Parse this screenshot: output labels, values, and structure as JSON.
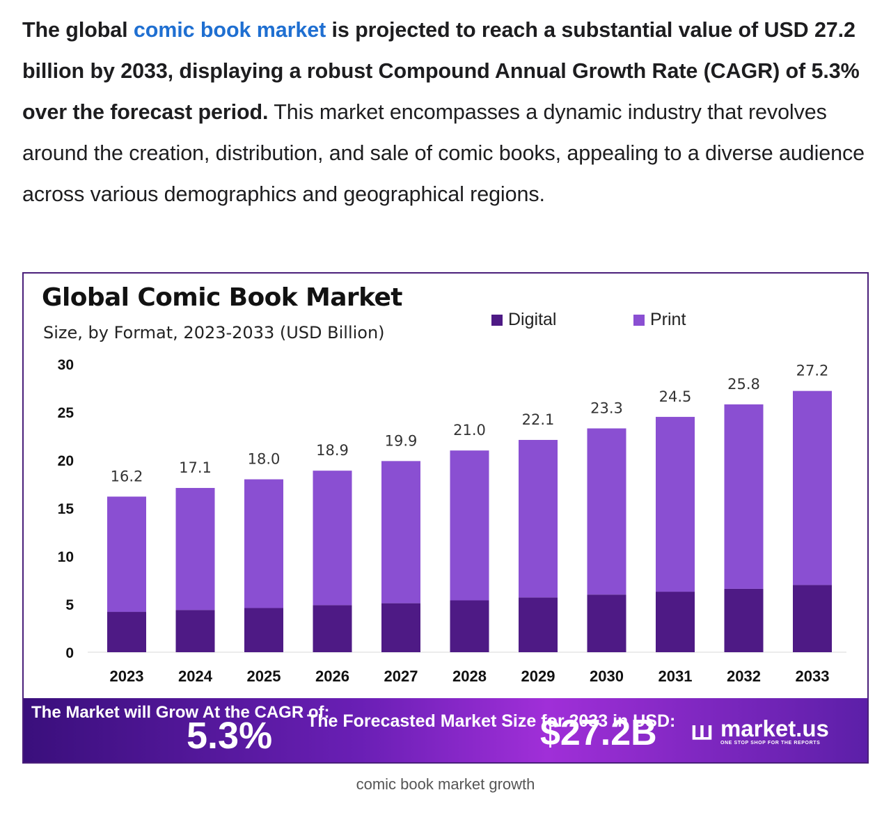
{
  "article": {
    "p1": "The global ",
    "link": "comic book market",
    "p2": " is projected to reach a substantial value of USD 27.2 billion by 2033, displaying a robust Compound Annual Growth Rate (CAGR) of 5.3% over the forecast period.",
    "p3": " This market encompasses a dynamic industry that revolves around the creation, distribution, and sale of comic books, appealing to a diverse audience across various demographics and geographical regions."
  },
  "figure": {
    "banner": {
      "grow_label": "The Market will Grow At the CAGR of:",
      "cagr": "5.3%",
      "forecast_label": "The Forecasted Market Size for 2033 in USD:",
      "forecast_value": "$27.2B",
      "logo_mark": "ꟺ",
      "logo_name": "market.us",
      "logo_tagline": "ONE STOP SHOP FOR THE REPORTS"
    },
    "caption": "comic book market growth"
  },
  "chart_data": {
    "type": "bar",
    "stacked": true,
    "title": "Global Comic Book Market",
    "subtitle": "Size, by Format, 2023-2033 (USD Billion)",
    "categories": [
      "2023",
      "2024",
      "2025",
      "2026",
      "2027",
      "2028",
      "2029",
      "2030",
      "2031",
      "2032",
      "2033"
    ],
    "series": [
      {
        "name": "Digital",
        "color": "#4e1a85",
        "values": [
          4.2,
          4.4,
          4.6,
          4.9,
          5.1,
          5.4,
          5.7,
          6.0,
          6.3,
          6.6,
          7.0
        ]
      },
      {
        "name": "Print",
        "color": "#8a4fd2",
        "values": [
          12.0,
          12.7,
          13.4,
          14.0,
          14.8,
          15.6,
          16.4,
          17.3,
          18.2,
          19.2,
          20.2
        ]
      }
    ],
    "totals_labels": [
      "16.2",
      "17.1",
      "18.0",
      "18.9",
      "19.9",
      "21.0",
      "22.1",
      "23.3",
      "24.5",
      "25.8",
      "27.2"
    ],
    "totals": [
      16.2,
      17.1,
      18.0,
      18.9,
      19.9,
      21.0,
      22.1,
      23.3,
      24.5,
      25.8,
      27.2
    ],
    "yticks": [
      "0",
      "5",
      "10",
      "15",
      "20",
      "25",
      "30"
    ],
    "ylim": [
      0,
      30
    ],
    "legend": "top-right",
    "grid": false
  }
}
